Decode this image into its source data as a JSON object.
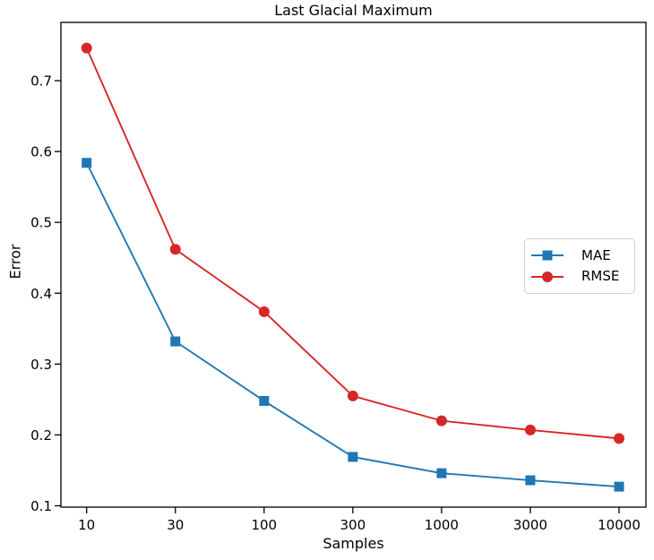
{
  "chart_data": {
    "type": "line",
    "title": "Last Glacial Maximum",
    "xlabel": "Samples",
    "ylabel": "Error",
    "categories": [
      "10",
      "30",
      "100",
      "300",
      "1000",
      "3000",
      "10000"
    ],
    "x_scale": "log-like-even-spacing",
    "yticks": [
      0.1,
      0.2,
      0.3,
      0.4,
      0.5,
      0.6,
      0.7
    ],
    "ylim": [
      0.098,
      0.782
    ],
    "grid": false,
    "legend_position": "center right",
    "series": [
      {
        "name": "MAE",
        "color": "#1f77b4",
        "marker": "square",
        "values": [
          0.584,
          0.332,
          0.248,
          0.169,
          0.146,
          0.136,
          0.127
        ]
      },
      {
        "name": "RMSE",
        "color": "#d62728",
        "marker": "circle",
        "values": [
          0.746,
          0.462,
          0.374,
          0.255,
          0.22,
          0.207,
          0.195
        ]
      }
    ]
  }
}
